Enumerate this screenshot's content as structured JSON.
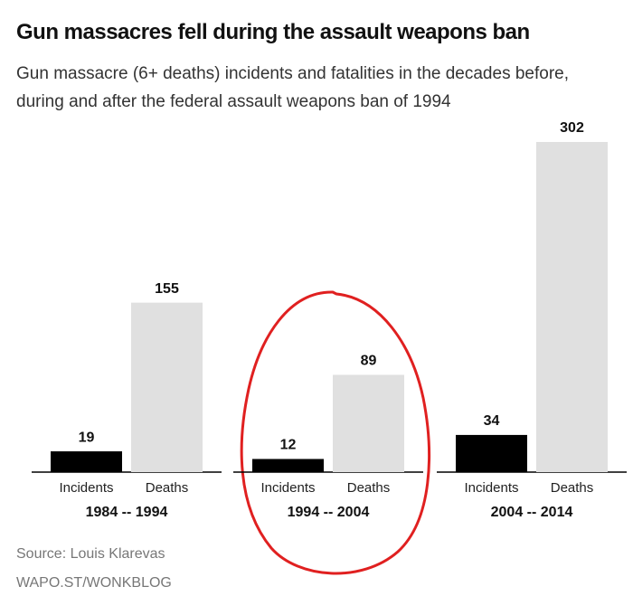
{
  "chart_data": {
    "type": "grouped_bar",
    "title": "Gun massacres fell during the assault weapons ban",
    "subtitle": "Gun massacre (6+ deaths) incidents and fatalities in the decades before, during and after the federal assault weapons ban of 1994",
    "categories": [
      "1984 -- 1994",
      "1994 -- 2004",
      "2004 -- 2014"
    ],
    "series": [
      {
        "name": "Incidents",
        "color": "#000000",
        "values": [
          19,
          12,
          34
        ]
      },
      {
        "name": "Deaths",
        "color": "#e0e0e0",
        "values": [
          155,
          89,
          302
        ]
      }
    ],
    "source": "Source: Louis Klarevas",
    "credit": "WAPO.ST/WONKBLOG"
  }
}
